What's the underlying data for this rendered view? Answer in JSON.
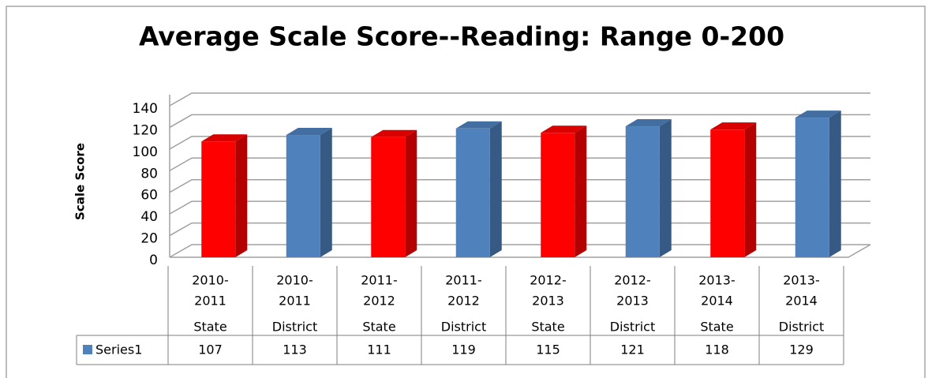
{
  "chart_data": {
    "type": "bar3d",
    "title": "Average Scale Score--Reading: Range 0-200",
    "ylabel": "Scale Score",
    "categories": [
      [
        "2010-",
        "2011"
      ],
      [
        "2010-",
        "2011"
      ],
      [
        "2011-",
        "2012"
      ],
      [
        "2011-",
        "2012"
      ],
      [
        "2012-",
        "2013"
      ],
      [
        "2012-",
        "2013"
      ],
      [
        "2013-",
        "2014"
      ],
      [
        "2013-",
        "2014"
      ]
    ],
    "subcategories": [
      "State",
      "District",
      "State",
      "District",
      "State",
      "District",
      "State",
      "District"
    ],
    "series": [
      {
        "name": "Series1",
        "color": "#4f81bd",
        "values": [
          107,
          113,
          111,
          119,
          115,
          121,
          118,
          129
        ],
        "point_colors": [
          "#ff0000",
          "#4f81bd",
          "#ff0000",
          "#4f81bd",
          "#ff0000",
          "#4f81bd",
          "#ff0000",
          "#4f81bd"
        ]
      }
    ],
    "ylim": [
      0,
      140
    ],
    "yticks": [
      0,
      20,
      40,
      60,
      80,
      100,
      120,
      140
    ],
    "grid": true,
    "data_table": true
  }
}
